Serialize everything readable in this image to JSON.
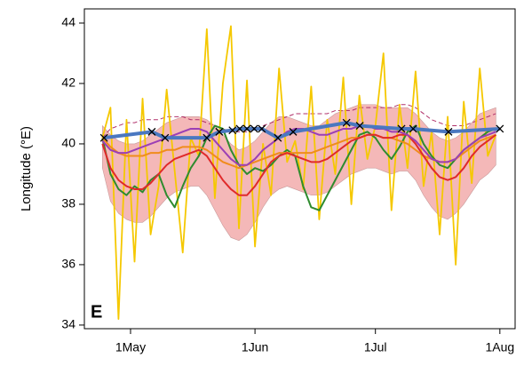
{
  "chart_data": {
    "type": "line",
    "panel_label": "E",
    "y_label": "Longitude (°E)",
    "xlim": [
      109.5,
      216.8
    ],
    "ylim": [
      33.88,
      44.47
    ],
    "xticks": [
      {
        "value": 121,
        "label": "1May"
      },
      {
        "value": 152,
        "label": "1Jun"
      },
      {
        "value": 182,
        "label": "1Jul"
      },
      {
        "value": 213,
        "label": "1Aug"
      }
    ],
    "yticks": [
      34,
      36,
      38,
      40,
      42,
      44
    ],
    "x": [
      114,
      116,
      118,
      120,
      122,
      124,
      126,
      128,
      130,
      132,
      134,
      136,
      138,
      140,
      142,
      144,
      146,
      148,
      150,
      152,
      154,
      156,
      158,
      160,
      162,
      164,
      166,
      168,
      170,
      172,
      174,
      176,
      178,
      180,
      182,
      184,
      186,
      188,
      190,
      192,
      194,
      196,
      198,
      200,
      202,
      204,
      206,
      208,
      210,
      212
    ],
    "band": {
      "color": "#f4b8b8",
      "lower": [
        39.2,
        38.1,
        37.7,
        37.5,
        37.4,
        37.4,
        37.6,
        37.9,
        38.2,
        38.4,
        38.5,
        38.6,
        38.6,
        38.3,
        37.8,
        37.3,
        36.9,
        36.8,
        37.0,
        37.4,
        37.9,
        38.3,
        38.5,
        38.6,
        38.5,
        38.4,
        38.3,
        38.3,
        38.4,
        38.6,
        38.8,
        39.0,
        39.1,
        39.2,
        39.2,
        39.1,
        39.0,
        39.1,
        39.1,
        38.8,
        38.3,
        37.9,
        37.6,
        37.5,
        37.7,
        38.0,
        38.4,
        38.8,
        39.0,
        39.3
      ],
      "upper": [
        40.6,
        40.3,
        40.1,
        40.0,
        40.0,
        40.1,
        40.3,
        40.5,
        40.7,
        40.8,
        40.9,
        40.9,
        40.9,
        40.8,
        40.6,
        40.3,
        40.0,
        39.8,
        39.9,
        40.1,
        40.4,
        40.7,
        40.9,
        40.9,
        40.8,
        40.7,
        40.6,
        40.6,
        40.8,
        41.0,
        41.1,
        41.2,
        41.3,
        41.3,
        41.3,
        41.2,
        41.2,
        41.2,
        41.2,
        41.0,
        40.7,
        40.4,
        40.2,
        40.1,
        40.2,
        40.4,
        40.7,
        41.0,
        41.1,
        41.2
      ]
    },
    "series": [
      {
        "color": "#b0306a",
        "dashed": true,
        "width": 1,
        "values": [
          40.2,
          40.5,
          40.6,
          40.7,
          40.7,
          40.8,
          40.8,
          40.8,
          40.9,
          40.9,
          40.9,
          40.8,
          40.8,
          40.7,
          40.6,
          40.5,
          40.4,
          40.4,
          40.4,
          40.5,
          40.6,
          40.7,
          40.8,
          40.9,
          41.0,
          41.0,
          41.0,
          41.0,
          41.0,
          41.1,
          41.1,
          41.1,
          41.2,
          41.2,
          41.2,
          41.2,
          41.2,
          41.3,
          41.3,
          41.2,
          41.0,
          40.8,
          40.7,
          40.6,
          40.6,
          40.6,
          40.7,
          40.8,
          40.9,
          41.0
        ]
      },
      {
        "color": "#f5c800",
        "width": 1.8,
        "values": [
          40.2,
          41.2,
          34.2,
          40.8,
          36.1,
          41.5,
          37.0,
          38.6,
          41.8,
          39.1,
          36.4,
          40.2,
          39.6,
          43.8,
          38.2,
          42.0,
          43.9,
          37.2,
          42.1,
          36.6,
          40.0,
          38.3,
          42.5,
          39.4,
          40.1,
          38.5,
          41.9,
          37.5,
          40.8,
          39.0,
          42.2,
          38.0,
          41.6,
          39.5,
          40.6,
          43.0,
          37.8,
          41.3,
          39.2,
          42.4,
          38.6,
          40.4,
          37.0,
          40.9,
          36.0,
          41.4,
          38.7,
          42.5,
          39.6,
          40.3
        ]
      },
      {
        "color": "#2e8b2e",
        "width": 2,
        "values": [
          40.2,
          39.0,
          38.5,
          38.3,
          38.6,
          38.4,
          38.8,
          39.0,
          38.3,
          37.9,
          38.6,
          39.2,
          39.6,
          40.2,
          40.6,
          40.5,
          39.8,
          39.3,
          39.0,
          39.2,
          39.1,
          39.3,
          39.6,
          39.8,
          39.6,
          38.6,
          37.9,
          37.8,
          38.3,
          38.8,
          39.3,
          39.8,
          40.3,
          40.4,
          40.2,
          39.8,
          39.5,
          39.9,
          40.4,
          40.6,
          40.0,
          39.6,
          39.3,
          39.2,
          39.5,
          39.8,
          40.0,
          40.2,
          40.4,
          40.5
        ]
      },
      {
        "color": "#f08c1c",
        "width": 2,
        "values": [
          40.2,
          39.9,
          39.7,
          39.6,
          39.6,
          39.6,
          39.7,
          39.7,
          39.8,
          39.8,
          39.9,
          39.9,
          39.9,
          39.8,
          39.6,
          39.4,
          39.3,
          39.2,
          39.3,
          39.4,
          39.5,
          39.6,
          39.7,
          39.7,
          39.7,
          39.7,
          39.7,
          39.8,
          39.9,
          40.0,
          40.1,
          40.2,
          40.2,
          40.3,
          40.3,
          40.2,
          40.2,
          40.1,
          40.0,
          39.8,
          39.6,
          39.5,
          39.4,
          39.4,
          39.5,
          39.7,
          39.9,
          40.1,
          40.2,
          40.3
        ]
      },
      {
        "color": "#e02a2a",
        "width": 2,
        "values": [
          40.0,
          39.2,
          38.8,
          38.6,
          38.5,
          38.5,
          38.7,
          39.0,
          39.3,
          39.5,
          39.6,
          39.7,
          39.8,
          39.6,
          39.2,
          38.8,
          38.5,
          38.3,
          38.3,
          38.6,
          39.0,
          39.4,
          39.6,
          39.7,
          39.6,
          39.5,
          39.4,
          39.4,
          39.5,
          39.7,
          39.9,
          40.1,
          40.2,
          40.3,
          40.3,
          40.2,
          40.2,
          40.3,
          40.3,
          40.0,
          39.6,
          39.2,
          38.9,
          38.8,
          38.9,
          39.2,
          39.6,
          39.9,
          40.1,
          40.3
        ]
      },
      {
        "color": "#9b3fb5",
        "width": 2,
        "values": [
          40.1,
          39.8,
          39.7,
          39.7,
          39.8,
          39.9,
          40.0,
          40.1,
          40.2,
          40.3,
          40.4,
          40.5,
          40.5,
          40.4,
          40.1,
          39.8,
          39.5,
          39.3,
          39.3,
          39.5,
          39.8,
          40.0,
          40.2,
          40.4,
          40.5,
          40.5,
          40.4,
          40.3,
          40.3,
          40.4,
          40.5,
          40.5,
          40.6,
          40.6,
          40.5,
          40.5,
          40.4,
          40.4,
          40.3,
          40.1,
          39.8,
          39.5,
          39.4,
          39.4,
          39.5,
          39.8,
          40.0,
          40.2,
          40.3,
          40.4
        ]
      },
      {
        "color": "#4a78c0",
        "width": 4,
        "markers": true,
        "x": [
          114.4,
          126.3,
          129.6,
          140.0,
          143.1,
          146.4,
          148.2,
          150.0,
          151.8,
          153.7,
          157.7,
          161.5,
          174.8,
          178.1,
          188.5,
          191.4,
          200.2,
          213.0
        ],
        "values": [
          40.2,
          40.4,
          40.2,
          40.2,
          40.4,
          40.45,
          40.5,
          40.5,
          40.5,
          40.5,
          40.2,
          40.4,
          40.7,
          40.6,
          40.5,
          40.5,
          40.4,
          40.5
        ]
      }
    ]
  }
}
